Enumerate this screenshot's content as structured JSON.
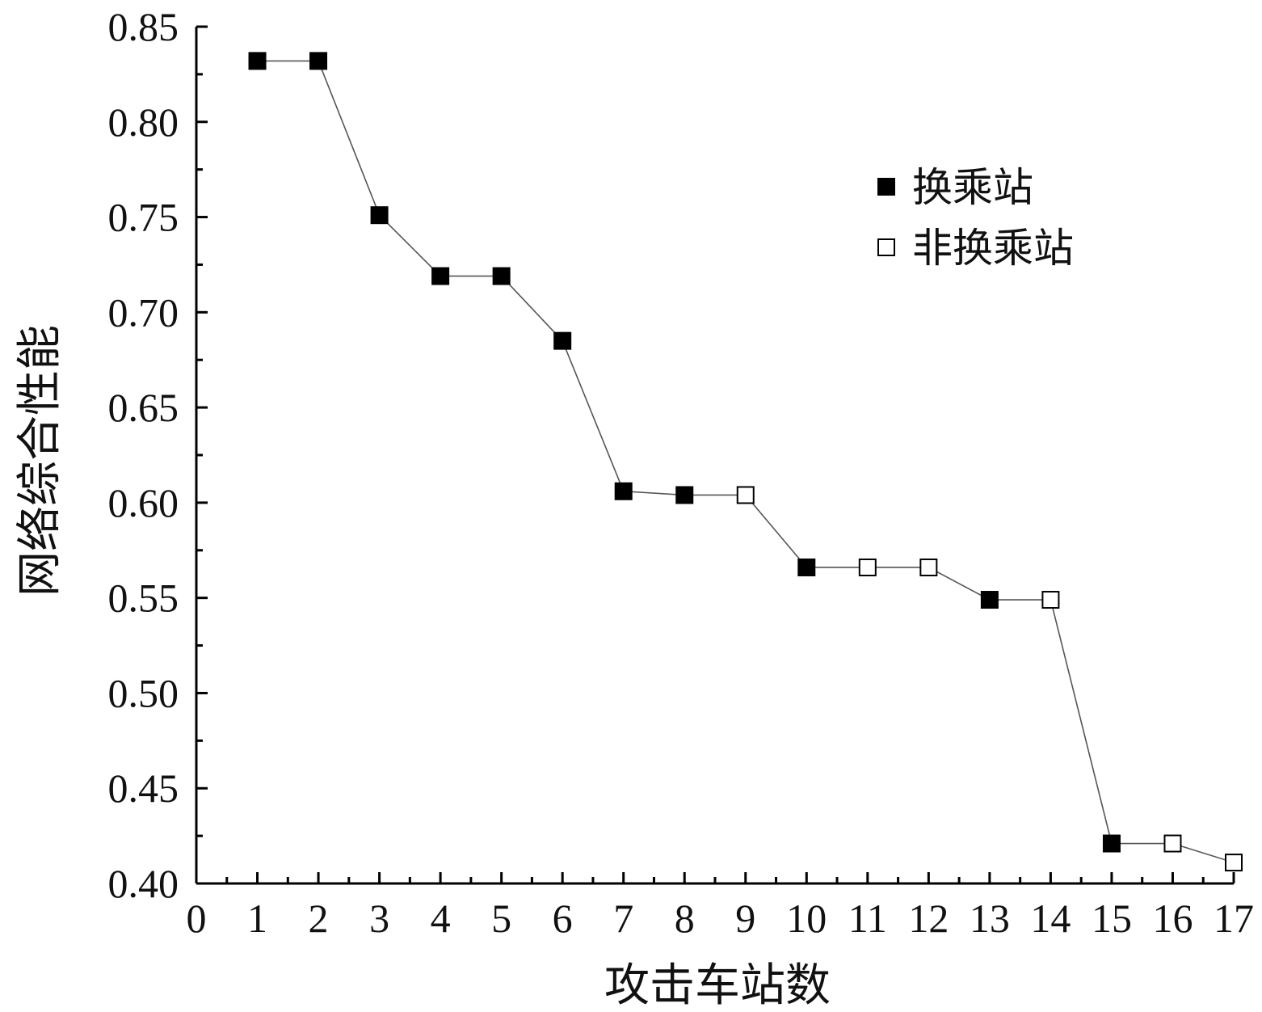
{
  "chart_data": {
    "type": "line",
    "title": "",
    "xlabel": "攻击车站数",
    "ylabel": "网络综合性能",
    "xlim": [
      0,
      17
    ],
    "ylim": [
      0.4,
      0.85
    ],
    "x_ticks": [
      "0",
      "1",
      "2",
      "3",
      "4",
      "5",
      "6",
      "7",
      "8",
      "9",
      "10",
      "11",
      "12",
      "13",
      "14",
      "15",
      "16",
      "17"
    ],
    "y_ticks": [
      "0.40",
      "0.45",
      "0.50",
      "0.55",
      "0.60",
      "0.65",
      "0.70",
      "0.75",
      "0.80",
      "0.85"
    ],
    "legend_position": "top-right",
    "series": [
      {
        "x": [
          1,
          2,
          3,
          4,
          5,
          6,
          7,
          8,
          9,
          10,
          11,
          12,
          13,
          14,
          15,
          16,
          17
        ],
        "y": [
          0.832,
          0.832,
          0.751,
          0.719,
          0.719,
          0.685,
          0.606,
          0.604,
          0.604,
          0.566,
          0.566,
          0.566,
          0.549,
          0.549,
          0.421,
          0.421,
          0.411
        ],
        "station_type": [
          "transfer",
          "transfer",
          "transfer",
          "transfer",
          "transfer",
          "transfer",
          "transfer",
          "transfer",
          "non-transfer",
          "transfer",
          "non-transfer",
          "non-transfer",
          "transfer",
          "non-transfer",
          "transfer",
          "non-transfer",
          "non-transfer"
        ]
      }
    ],
    "legend": [
      {
        "label": "换乘站",
        "marker": "filled-square",
        "key": "transfer"
      },
      {
        "label": "非换乘站",
        "marker": "open-square",
        "key": "non-transfer"
      }
    ],
    "colors": {
      "marker_fill": "#000000",
      "marker_open_fill": "#ffffff",
      "line": "#555555",
      "axis": "#000000"
    }
  }
}
